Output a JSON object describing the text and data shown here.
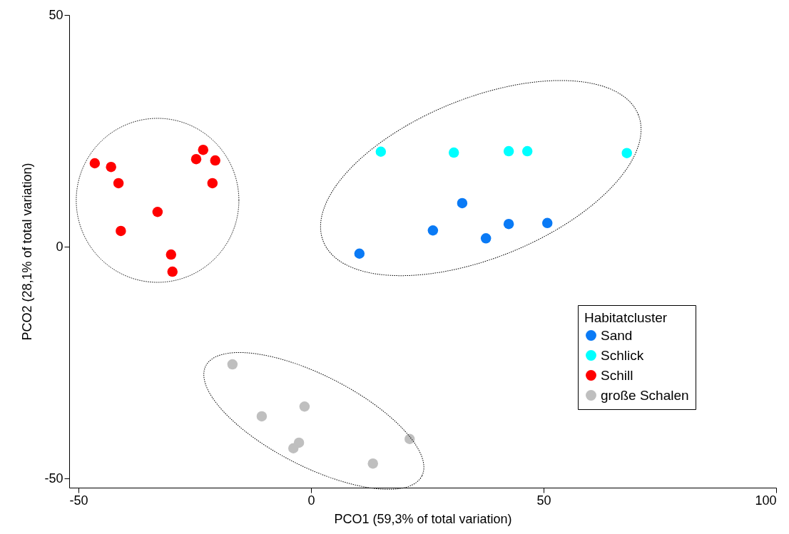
{
  "chart_data": {
    "type": "scatter",
    "xlabel": "PCO1 (59,3% of total variation)",
    "ylabel": "PCO2 (28,1% of total variation)",
    "legend_title": "Habitatcluster",
    "legend": "bottom right",
    "grid": false,
    "marker": "circle",
    "xlim": [
      -52,
      100
    ],
    "xticks": [
      -50,
      0,
      50,
      100
    ],
    "ylim": [
      -52,
      50
    ],
    "yticks": [
      -50,
      0,
      50
    ],
    "series": [
      {
        "name": "Sand",
        "color": "#0a7af5",
        "x": [
          10.4,
          26.2,
          32.5,
          37.6,
          42.5,
          50.8
        ],
        "values": [
          -1.5,
          3.5,
          9.4,
          1.8,
          4.9,
          5.1
        ]
      },
      {
        "name": "Schlick",
        "color": "#00ffff",
        "x": [
          15.0,
          30.7,
          42.5,
          46.5,
          67.9
        ],
        "values": [
          20.5,
          20.3,
          20.6,
          20.6,
          20.2
        ]
      },
      {
        "name": "Schill",
        "color": "#ff0000",
        "x": [
          -46.5,
          -43.0,
          -41.4,
          -24.7,
          -23.2,
          -20.6,
          -21.2,
          -33.0,
          -40.9,
          -30.1,
          -29.8
        ],
        "values": [
          18.0,
          17.2,
          13.7,
          18.9,
          20.9,
          18.6,
          13.7,
          7.5,
          3.4,
          -1.7,
          -5.4
        ]
      },
      {
        "name": "große Schalen",
        "color": "#bfbfbf",
        "x": [
          -16.9,
          -10.6,
          -1.4,
          -2.6,
          -3.8,
          21.2,
          13.3
        ],
        "values": [
          -25.4,
          -36.6,
          -34.5,
          -42.3,
          -43.5,
          -41.5,
          -46.8
        ]
      }
    ]
  }
}
